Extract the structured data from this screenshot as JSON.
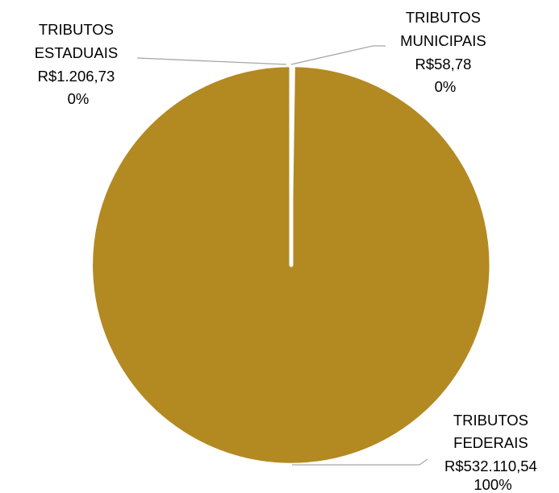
{
  "chart_data": {
    "type": "pie",
    "slices": [
      {
        "name": "TRIBUTOS ESTADUAIS",
        "value": 1206.73,
        "value_label": "R$1.206,73",
        "percent_label": "0%"
      },
      {
        "name": "TRIBUTOS MUNICIPAIS",
        "value": 58.78,
        "value_label": "R$58,78",
        "percent_label": "0%"
      },
      {
        "name": "TRIBUTOS FEDERAIS",
        "value": 532110.54,
        "value_label": "R$532.110,54",
        "percent_label": "100%"
      }
    ],
    "colors": {
      "slice_fill": "#B38922",
      "slice_border": "#ffffff",
      "leader_line": "#a6a6a6"
    },
    "legend": "none"
  }
}
